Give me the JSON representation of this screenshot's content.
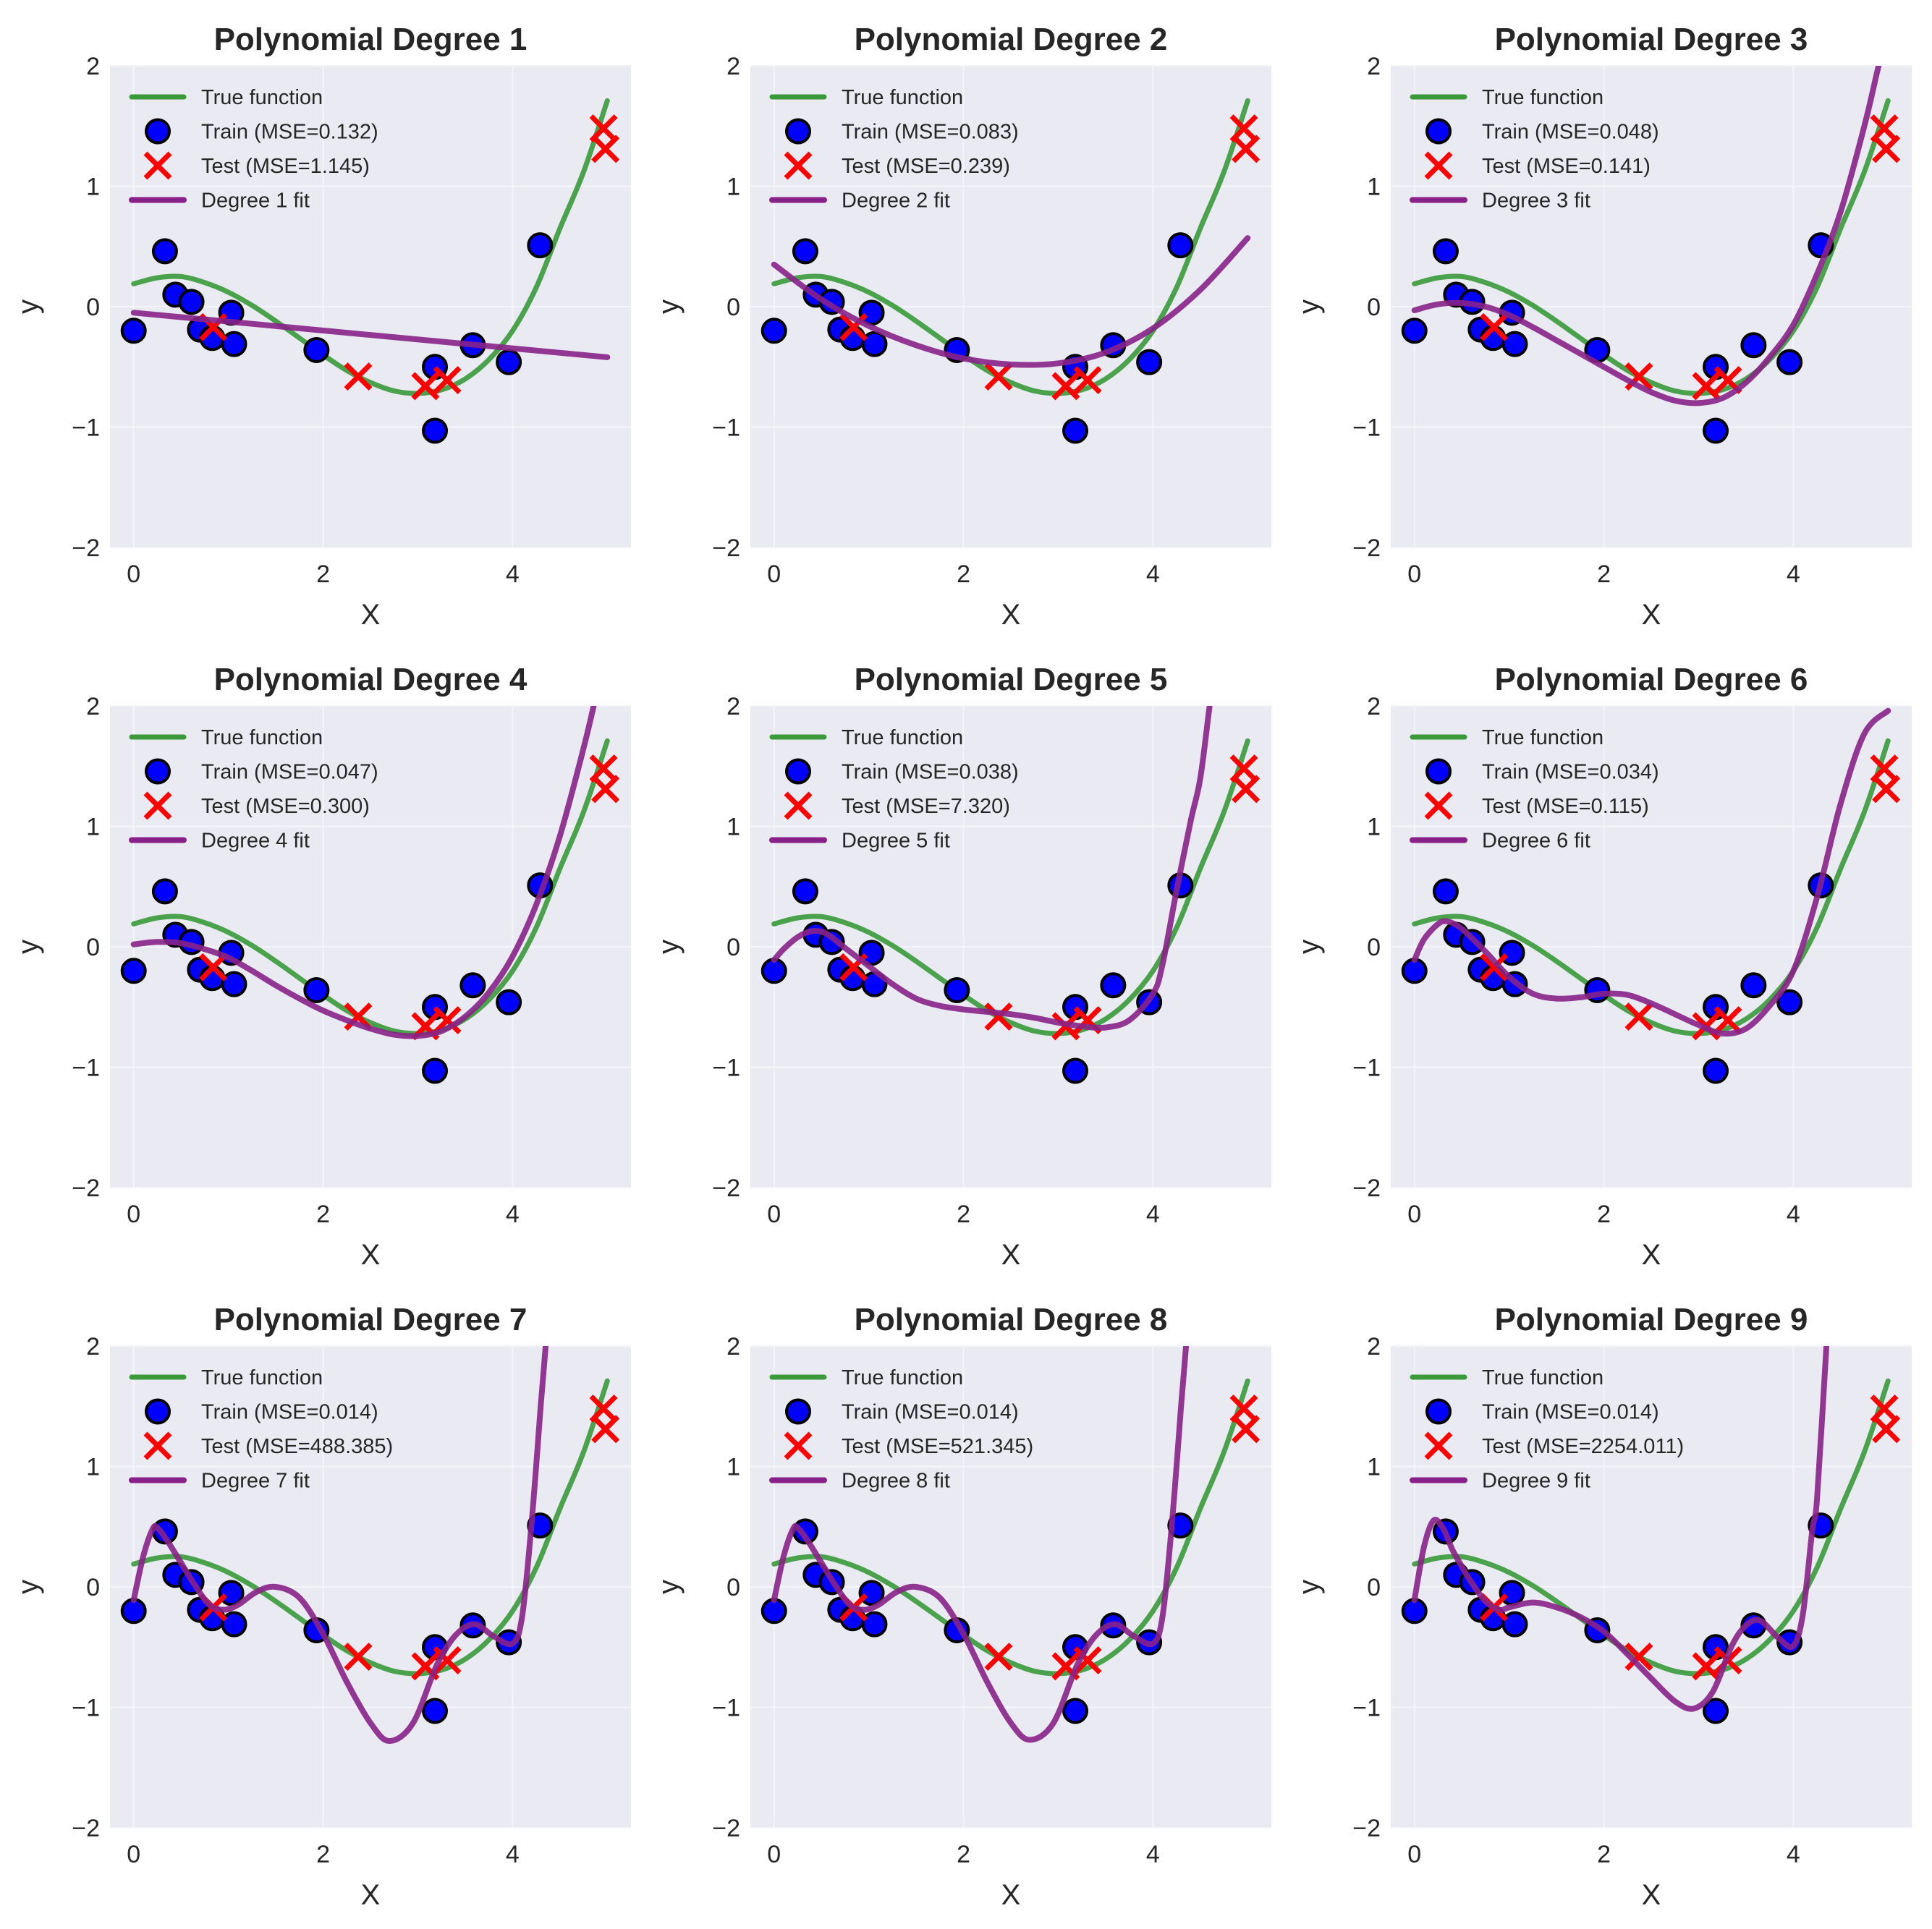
{
  "figure": {
    "layout": "3x3 grid",
    "style": "seaborn-darkgrid"
  },
  "colors": {
    "axes_background": "#eaeaf2",
    "grid": "#f5f5f9",
    "true_function": "#3a9a3a",
    "train_fill": "#0000ff",
    "train_edge": "#000000",
    "test": "#ff0000",
    "fit": "#882288",
    "text": "#262626"
  },
  "chart_data": [
    {
      "type": "scatter",
      "title": "Polynomial Degree 1",
      "xlabel": "X",
      "ylabel": "y",
      "xlim": [
        -0.25,
        5.25
      ],
      "ylim": [
        -2,
        2
      ],
      "xticks": [
        "0",
        "2",
        "4"
      ],
      "xtick_values": [
        0,
        2,
        4
      ],
      "yticks": [
        "2",
        "1",
        "0",
        "−1",
        "−2"
      ],
      "ytick_values": [
        2,
        1,
        0,
        -1,
        -2
      ],
      "grid": true,
      "legend_position": "upper-left",
      "legend": [
        "True function",
        "Train (MSE=0.132)",
        "Test (MSE=1.145)",
        "Degree 1 fit"
      ],
      "degree": 1,
      "train_mse": 0.132,
      "test_mse": 1.145,
      "fit_curve": {
        "x": [
          0,
          5
        ],
        "y": [
          -0.05,
          -0.42
        ]
      }
    },
    {
      "type": "scatter",
      "title": "Polynomial Degree 2",
      "xlabel": "X",
      "ylabel": "y",
      "xlim": [
        -0.25,
        5.25
      ],
      "ylim": [
        -2,
        2
      ],
      "xticks": [
        "0",
        "2",
        "4"
      ],
      "xtick_values": [
        0,
        2,
        4
      ],
      "yticks": [
        "2",
        "1",
        "0",
        "−1",
        "−2"
      ],
      "ytick_values": [
        2,
        1,
        0,
        -1,
        -2
      ],
      "grid": true,
      "legend_position": "upper-left",
      "legend": [
        "True function",
        "Train (MSE=0.083)",
        "Test (MSE=0.239)",
        "Degree 2 fit"
      ],
      "degree": 2,
      "train_mse": 0.083,
      "test_mse": 0.239,
      "fit_curve": {
        "x": [
          0,
          0.5,
          1,
          1.5,
          2,
          2.5,
          3,
          3.5,
          4,
          4.5,
          5
        ],
        "y": [
          0.35,
          0.06,
          -0.16,
          -0.32,
          -0.43,
          -0.48,
          -0.47,
          -0.38,
          -0.18,
          0.14,
          0.57
        ]
      }
    },
    {
      "type": "scatter",
      "title": "Polynomial Degree 3",
      "xlabel": "X",
      "ylabel": "y",
      "xlim": [
        -0.25,
        5.25
      ],
      "ylim": [
        -2,
        2
      ],
      "xticks": [
        "0",
        "2",
        "4"
      ],
      "xtick_values": [
        0,
        2,
        4
      ],
      "yticks": [
        "2",
        "1",
        "0",
        "−1",
        "−2"
      ],
      "ytick_values": [
        2,
        1,
        0,
        -1,
        -2
      ],
      "grid": true,
      "legend_position": "upper-left",
      "legend": [
        "True function",
        "Train (MSE=0.048)",
        "Test (MSE=0.141)",
        "Degree 3 fit"
      ],
      "degree": 3,
      "train_mse": 0.048,
      "test_mse": 0.141,
      "fit_curve": {
        "x": [
          0,
          0.25,
          0.5,
          0.75,
          1,
          1.25,
          1.5,
          1.75,
          2,
          2.25,
          2.5,
          2.75,
          3,
          3.25,
          3.5,
          3.75,
          4,
          4.25,
          4.5,
          4.75,
          4.9,
          5
        ],
        "y": [
          -0.03,
          0.02,
          0.03,
          0.0,
          -0.07,
          -0.17,
          -0.28,
          -0.39,
          -0.5,
          -0.61,
          -0.71,
          -0.78,
          -0.8,
          -0.76,
          -0.63,
          -0.42,
          -0.15,
          0.27,
          0.79,
          1.5,
          2.0,
          2.3
        ]
      }
    },
    {
      "type": "scatter",
      "title": "Polynomial Degree 4",
      "xlabel": "X",
      "ylabel": "y",
      "xlim": [
        -0.25,
        5.25
      ],
      "ylim": [
        -2,
        2
      ],
      "xticks": [
        "0",
        "2",
        "4"
      ],
      "xtick_values": [
        0,
        2,
        4
      ],
      "yticks": [
        "2",
        "1",
        "0",
        "−1",
        "−2"
      ],
      "ytick_values": [
        2,
        1,
        0,
        -1,
        -2
      ],
      "grid": true,
      "legend_position": "upper-left",
      "legend": [
        "True function",
        "Train (MSE=0.047)",
        "Test (MSE=0.300)",
        "Degree 4 fit"
      ],
      "degree": 4,
      "train_mse": 0.047,
      "test_mse": 0.3,
      "fit_curve": {
        "x": [
          0,
          0.25,
          0.5,
          0.75,
          1,
          1.25,
          1.5,
          1.75,
          2,
          2.25,
          2.5,
          2.75,
          3,
          3.25,
          3.5,
          3.75,
          4,
          4.25,
          4.5,
          4.75,
          4.9
        ],
        "y": [
          0.02,
          0.04,
          0.03,
          -0.02,
          -0.09,
          -0.2,
          -0.32,
          -0.43,
          -0.53,
          -0.61,
          -0.68,
          -0.73,
          -0.74,
          -0.7,
          -0.58,
          -0.38,
          -0.08,
          0.35,
          0.92,
          1.65,
          2.15
        ]
      }
    },
    {
      "type": "scatter",
      "title": "Polynomial Degree 5",
      "xlabel": "X",
      "ylabel": "y",
      "xlim": [
        -0.25,
        5.25
      ],
      "ylim": [
        -2,
        2
      ],
      "xticks": [
        "0",
        "2",
        "4"
      ],
      "xtick_values": [
        0,
        2,
        4
      ],
      "yticks": [
        "2",
        "1",
        "0",
        "−1",
        "−2"
      ],
      "ytick_values": [
        2,
        1,
        0,
        -1,
        -2
      ],
      "grid": true,
      "legend_position": "upper-left",
      "legend": [
        "True function",
        "Train (MSE=0.038)",
        "Test (MSE=7.320)",
        "Degree 5 fit"
      ],
      "degree": 5,
      "train_mse": 0.038,
      "test_mse": 7.32,
      "fit_curve": {
        "x": [
          0,
          0.1,
          0.25,
          0.4,
          0.55,
          0.75,
          1,
          1.25,
          1.5,
          1.75,
          2,
          2.25,
          2.5,
          2.75,
          3,
          3.25,
          3.5,
          3.75,
          4,
          4.1,
          4.25,
          4.4,
          4.5,
          4.6,
          4.7
        ],
        "y": [
          -0.11,
          -0.02,
          0.08,
          0.13,
          0.11,
          -0.01,
          -0.16,
          -0.31,
          -0.43,
          -0.49,
          -0.52,
          -0.54,
          -0.56,
          -0.59,
          -0.63,
          -0.66,
          -0.67,
          -0.61,
          -0.39,
          -0.15,
          0.47,
          1.05,
          1.4,
          2.01,
          2.6
        ]
      }
    },
    {
      "type": "scatter",
      "title": "Polynomial Degree 6",
      "xlabel": "X",
      "ylabel": "y",
      "xlim": [
        -0.25,
        5.25
      ],
      "ylim": [
        -2,
        2
      ],
      "xticks": [
        "0",
        "2",
        "4"
      ],
      "xtick_values": [
        0,
        2,
        4
      ],
      "yticks": [
        "2",
        "1",
        "0",
        "−1",
        "−2"
      ],
      "ytick_values": [
        2,
        1,
        0,
        -1,
        -2
      ],
      "grid": true,
      "legend_position": "upper-left",
      "legend": [
        "True function",
        "Train (MSE=0.034)",
        "Test (MSE=0.115)",
        "Degree 6 fit"
      ],
      "degree": 6,
      "train_mse": 0.034,
      "test_mse": 0.115,
      "fit_curve": {
        "x": [
          0,
          0.1,
          0.25,
          0.35,
          0.5,
          0.75,
          1,
          1.25,
          1.5,
          1.75,
          2,
          2.25,
          2.5,
          2.75,
          3,
          3.25,
          3.5,
          3.75,
          4,
          4.25,
          4.5,
          4.75,
          5
        ],
        "y": [
          -0.11,
          0.06,
          0.19,
          0.21,
          0.15,
          -0.04,
          -0.25,
          -0.39,
          -0.43,
          -0.42,
          -0.39,
          -0.4,
          -0.47,
          -0.56,
          -0.65,
          -0.72,
          -0.68,
          -0.49,
          -0.2,
          0.41,
          1.19,
          1.77,
          1.96
        ]
      }
    },
    {
      "type": "scatter",
      "title": "Polynomial Degree 7",
      "xlabel": "X",
      "ylabel": "y",
      "xlim": [
        -0.25,
        5.25
      ],
      "ylim": [
        -2,
        2
      ],
      "xticks": [
        "0",
        "2",
        "4"
      ],
      "xtick_values": [
        0,
        2,
        4
      ],
      "yticks": [
        "2",
        "1",
        "0",
        "−1",
        "−2"
      ],
      "ytick_values": [
        2,
        1,
        0,
        -1,
        -2
      ],
      "grid": true,
      "legend_position": "upper-left",
      "legend": [
        "True function",
        "Train (MSE=0.014)",
        "Test (MSE=488.385)",
        "Degree 7 fit"
      ],
      "degree": 7,
      "train_mse": 0.014,
      "test_mse": 488.385,
      "fit_curve": {
        "x": [
          0,
          0.1,
          0.2,
          0.25,
          0.35,
          0.5,
          0.65,
          0.8,
          0.95,
          1.1,
          1.3,
          1.5,
          1.75,
          2,
          2.25,
          2.5,
          2.7,
          2.95,
          3.2,
          3.4,
          3.6,
          3.8,
          4,
          4.1,
          4.2,
          4.3,
          4.35,
          4.4
        ],
        "y": [
          -0.11,
          0.25,
          0.48,
          0.49,
          0.39,
          0.2,
          0.01,
          -0.15,
          -0.19,
          -0.15,
          -0.04,
          0.0,
          -0.09,
          -0.39,
          -0.79,
          -1.13,
          -1.28,
          -1.13,
          -0.65,
          -0.4,
          -0.31,
          -0.41,
          -0.47,
          -0.25,
          0.52,
          1.53,
          2.01,
          2.6
        ]
      }
    },
    {
      "type": "scatter",
      "title": "Polynomial Degree 8",
      "xlabel": "X",
      "ylabel": "y",
      "xlim": [
        -0.25,
        5.25
      ],
      "ylim": [
        -2,
        2
      ],
      "xticks": [
        "0",
        "2",
        "4"
      ],
      "xtick_values": [
        0,
        2,
        4
      ],
      "yticks": [
        "2",
        "1",
        "0",
        "−1",
        "−2"
      ],
      "ytick_values": [
        2,
        1,
        0,
        -1,
        -2
      ],
      "grid": true,
      "legend_position": "upper-left",
      "legend": [
        "True function",
        "Train (MSE=0.014)",
        "Test (MSE=521.345)",
        "Degree 8 fit"
      ],
      "degree": 8,
      "train_mse": 0.014,
      "test_mse": 521.345,
      "fit_curve": {
        "x": [
          0,
          0.1,
          0.2,
          0.25,
          0.35,
          0.5,
          0.65,
          0.8,
          0.95,
          1.1,
          1.3,
          1.5,
          1.75,
          2,
          2.25,
          2.5,
          2.7,
          2.95,
          3.2,
          3.4,
          3.6,
          3.8,
          4,
          4.1,
          4.2,
          4.3,
          4.35,
          4.4
        ],
        "y": [
          -0.11,
          0.25,
          0.48,
          0.49,
          0.39,
          0.2,
          0.01,
          -0.15,
          -0.19,
          -0.15,
          -0.04,
          0.0,
          -0.09,
          -0.39,
          -0.79,
          -1.13,
          -1.27,
          -1.13,
          -0.65,
          -0.4,
          -0.31,
          -0.41,
          -0.47,
          -0.25,
          0.52,
          1.53,
          2.01,
          2.6
        ]
      }
    },
    {
      "type": "scatter",
      "title": "Polynomial Degree 9",
      "xlabel": "X",
      "ylabel": "y",
      "xlim": [
        -0.25,
        5.25
      ],
      "ylim": [
        -2,
        2
      ],
      "xticks": [
        "0",
        "2",
        "4"
      ],
      "xtick_values": [
        0,
        2,
        4
      ],
      "yticks": [
        "2",
        "1",
        "0",
        "−1",
        "−2"
      ],
      "ytick_values": [
        2,
        1,
        0,
        -1,
        -2
      ],
      "grid": true,
      "legend_position": "upper-left",
      "legend": [
        "True function",
        "Train (MSE=0.014)",
        "Test (MSE=2254.011)",
        "Degree 9 fit"
      ],
      "degree": 9,
      "train_mse": 0.014,
      "test_mse": 2254.011,
      "fit_curve": {
        "x": [
          0,
          0.1,
          0.2,
          0.3,
          0.4,
          0.5,
          0.6,
          0.75,
          0.9,
          1,
          1.25,
          1.5,
          1.75,
          2,
          2.25,
          2.5,
          2.75,
          2.95,
          3.15,
          3.35,
          3.5,
          3.65,
          3.85,
          4,
          4.1,
          4.2,
          4.25,
          4.35,
          4.4
        ],
        "y": [
          -0.11,
          0.33,
          0.55,
          0.49,
          0.31,
          0.17,
          0.04,
          -0.12,
          -0.19,
          -0.17,
          -0.13,
          -0.17,
          -0.25,
          -0.37,
          -0.56,
          -0.76,
          -0.95,
          -1.01,
          -0.87,
          -0.49,
          -0.32,
          -0.28,
          -0.43,
          -0.49,
          -0.23,
          0.47,
          0.73,
          2.01,
          2.6
        ]
      }
    }
  ],
  "shared_series": {
    "true_function": {
      "name": "True function",
      "x": [
        0,
        0.25,
        0.5,
        0.75,
        1,
        1.25,
        1.5,
        1.75,
        2,
        2.25,
        2.5,
        2.75,
        3,
        3.25,
        3.5,
        3.75,
        4,
        4.25,
        4.5,
        4.75,
        5
      ],
      "y": [
        0.19,
        0.24,
        0.25,
        0.2,
        0.12,
        0.01,
        -0.12,
        -0.26,
        -0.4,
        -0.53,
        -0.63,
        -0.7,
        -0.72,
        -0.69,
        -0.6,
        -0.44,
        -0.2,
        0.16,
        0.65,
        1.12,
        1.71
      ]
    },
    "train": {
      "name": "Train",
      "x": [
        0.0,
        0.33,
        0.44,
        0.61,
        0.7,
        0.83,
        1.03,
        1.06,
        1.93,
        3.18,
        3.18,
        3.58,
        3.96,
        4.29
      ],
      "y": [
        -0.2,
        0.46,
        0.1,
        0.04,
        -0.19,
        -0.26,
        -0.05,
        -0.31,
        -0.36,
        -0.5,
        -1.03,
        -0.32,
        -0.46,
        0.51
      ]
    },
    "test": {
      "name": "Test",
      "x": [
        0.84,
        2.37,
        3.08,
        3.31,
        4.96,
        4.98
      ],
      "y": [
        -0.17,
        -0.58,
        -0.66,
        -0.61,
        1.48,
        1.31
      ]
    }
  }
}
